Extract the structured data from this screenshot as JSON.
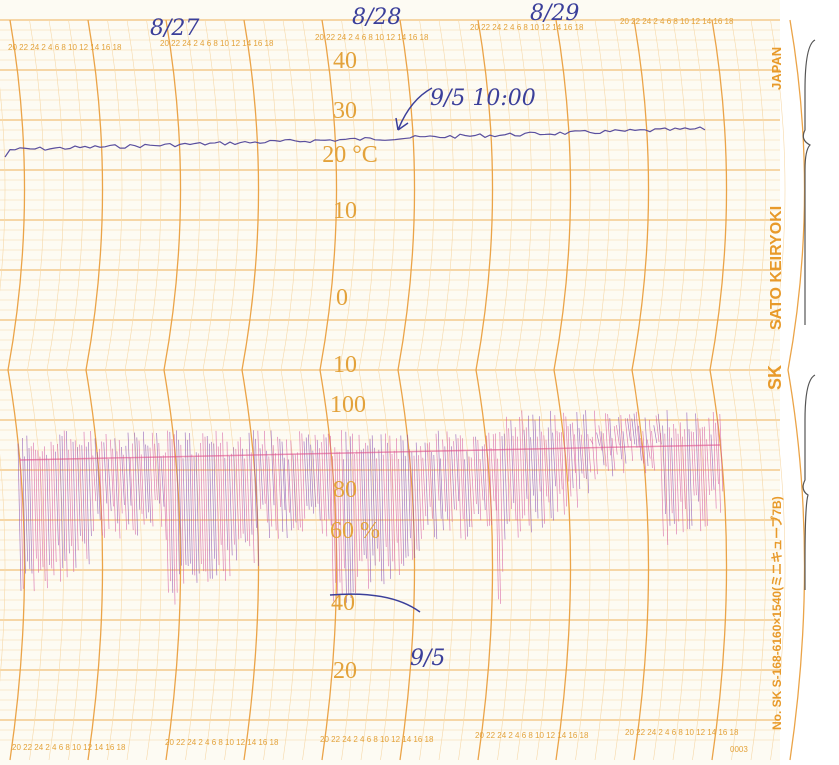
{
  "chart_paper": {
    "temperature_scale": [
      "40",
      "30",
      "20 °C",
      "10",
      "0",
      "10"
    ],
    "humidity_scale": [
      "100",
      "80",
      "60 %",
      "40",
      "20"
    ],
    "hour_scale": "20 22 24 2 4 6 8 10 12 14 16 18",
    "brand": "SATO KEIRYOKI",
    "country": "JAPAN",
    "logo": "SK",
    "model": "No. SK S-168-6160×1540(ミニキューブ7B)",
    "serial": "0003"
  },
  "handwriting": {
    "dates": [
      "8/27",
      "8/28",
      "8/29"
    ],
    "start_note": "9/5 10:00",
    "end_note": "9/5"
  }
}
